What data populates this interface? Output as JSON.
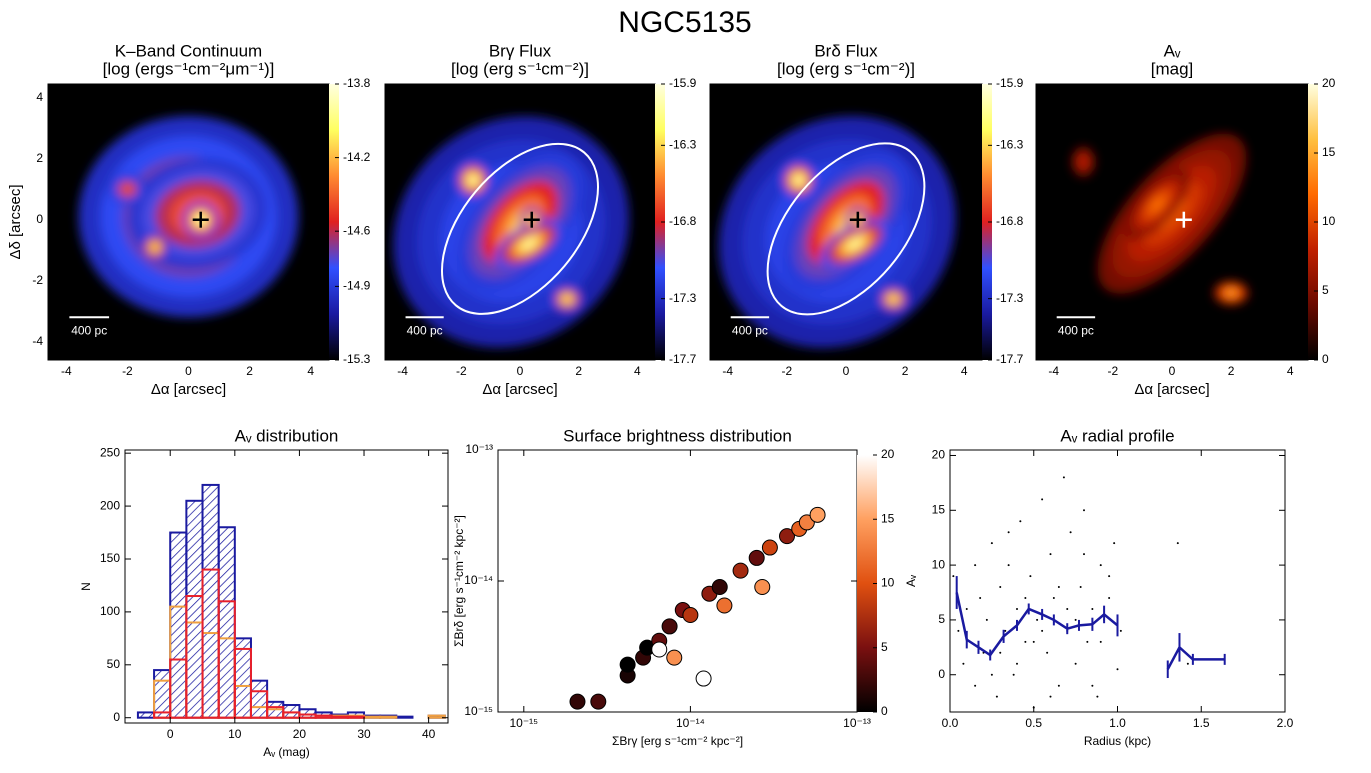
{
  "figure_title": "NGC5135",
  "chart_data": [
    {
      "type": "image",
      "title": "K–Band Continuum",
      "subtitle": "[log (ergs⁻¹cm⁻²μm⁻¹)]",
      "xlabel": "Δα [arcsec]",
      "ylabel": "Δδ [arcsec]",
      "xlim": [
        -4.6,
        4.6
      ],
      "ylim": [
        -4.6,
        4.45
      ],
      "xticks": [
        -4,
        -2,
        0,
        2,
        4
      ],
      "yticks": [
        -4,
        -2,
        0,
        2,
        4
      ],
      "clim": [
        -15.3,
        -13.8
      ],
      "cticks": [
        -13.8,
        -14.2,
        -14.6,
        -14.9,
        -15.3
      ],
      "colormap": [
        "#000000",
        "#1a1aa0",
        "#3050ff",
        "#e02020",
        "#ff8a30",
        "#ffff60",
        "#ffffe0"
      ],
      "scale_bar": "400 pc",
      "marker": {
        "x": 0.4,
        "y": 0,
        "color": "#000000"
      }
    },
    {
      "type": "image",
      "title": "Brγ Flux",
      "subtitle": "[log (erg s⁻¹cm⁻²)]",
      "xlabel": "Δα [arcsec]",
      "xlim": [
        -4.6,
        4.6
      ],
      "ylim": [
        -4.6,
        4.45
      ],
      "xticks": [
        -4,
        -2,
        0,
        2,
        4
      ],
      "clim": [
        -17.7,
        -15.9
      ],
      "cticks": [
        -15.9,
        -16.3,
        -16.8,
        -17.3,
        -17.7
      ],
      "colormap": [
        "#000000",
        "#1a1aa0",
        "#3050ff",
        "#e02020",
        "#ff8a30",
        "#ffff60",
        "#ffffe0"
      ],
      "scale_bar": "400 pc",
      "marker": {
        "x": 0.4,
        "y": 0,
        "color": "#000000"
      },
      "contour": "#ffffff"
    },
    {
      "type": "image",
      "title": "Brδ Flux",
      "subtitle": "[log (erg s⁻¹cm⁻²)]",
      "xlim": [
        -4.6,
        4.6
      ],
      "ylim": [
        -4.6,
        4.45
      ],
      "xticks": [
        -4,
        -2,
        0,
        2,
        4
      ],
      "clim": [
        -17.7,
        -15.9
      ],
      "cticks": [
        -15.9,
        -16.3,
        -16.8,
        -17.3,
        -17.7
      ],
      "colormap": [
        "#000000",
        "#1a1aa0",
        "#3050ff",
        "#e02020",
        "#ff8a30",
        "#ffff60",
        "#ffffe0"
      ],
      "scale_bar": "400 pc",
      "marker": {
        "x": 0.4,
        "y": 0,
        "color": "#000000"
      },
      "contour": "#ffffff"
    },
    {
      "type": "image",
      "title": "Aᵥ",
      "subtitle": "[mag]",
      "xlabel": "Δα [arcsec]",
      "xlim": [
        -4.6,
        4.6
      ],
      "ylim": [
        -4.6,
        4.45
      ],
      "xticks": [
        -4,
        -2,
        0,
        2,
        4
      ],
      "clim": [
        0,
        20
      ],
      "cticks": [
        20,
        15,
        10,
        5,
        0
      ],
      "colormap": [
        "#000000",
        "#6a0a00",
        "#c02000",
        "#ff6a00",
        "#ffc040",
        "#ffffe0"
      ],
      "scale_bar": "400 pc",
      "marker": {
        "x": 0.4,
        "y": 0,
        "color": "#ffffff"
      }
    },
    {
      "type": "histogram",
      "title": "Aᵥ distribution",
      "xlabel": "Aᵥ (mag)",
      "ylabel": "N",
      "xlim": [
        -7,
        43
      ],
      "ylim": [
        -5,
        253
      ],
      "xticks": [
        0,
        10,
        20,
        30,
        40
      ],
      "yticks": [
        0,
        50,
        100,
        150,
        200,
        250
      ],
      "bins": [
        -5,
        -2.5,
        0,
        2.5,
        5,
        7.5,
        10,
        12.5,
        15,
        17.5,
        20,
        22.5,
        25,
        27.5,
        30,
        32.5,
        35,
        37.5,
        40,
        42.5
      ],
      "series": [
        {
          "color": "#1a1aa0",
          "hatch": true,
          "values": [
            5,
            45,
            175,
            205,
            220,
            180,
            75,
            35,
            15,
            12,
            8,
            5,
            3,
            5,
            2,
            2,
            1,
            0,
            2
          ]
        },
        {
          "color": "#f0a040",
          "values": [
            0,
            35,
            105,
            90,
            80,
            75,
            30,
            10,
            8,
            5,
            3,
            2,
            2,
            2,
            1,
            1,
            0,
            0,
            2
          ]
        },
        {
          "color": "#e8202a",
          "values": [
            0,
            5,
            55,
            115,
            140,
            110,
            65,
            25,
            10,
            5,
            3,
            2,
            1,
            1,
            0,
            0,
            0,
            0,
            0
          ]
        }
      ]
    },
    {
      "type": "scatter",
      "title": "Surface brightness distribution",
      "xlabel": "ΣBrγ [erg s⁻¹cm⁻² kpc⁻²]",
      "ylabel": "ΣBrδ [erg s⁻¹cm⁻² kpc⁻²]",
      "log_x": true,
      "log_y": true,
      "xlim": [
        7e-16,
        1e-13
      ],
      "ylim": [
        1e-15,
        1e-13
      ],
      "xticks": [
        {
          "value": 1e-15,
          "label": "10⁻¹⁵"
        },
        {
          "value": 1e-14,
          "label": "10⁻¹⁴"
        },
        {
          "value": 1e-13,
          "label": "10⁻¹³"
        }
      ],
      "yticks": [
        {
          "value": 1e-15,
          "label": "10⁻¹⁵"
        },
        {
          "value": 1e-14,
          "label": "10⁻¹⁴"
        },
        {
          "value": 1e-13,
          "label": "10⁻¹³"
        }
      ],
      "x": [
        2.1e-15,
        2.8e-15,
        4.2e-15,
        4.2e-15,
        5.2e-15,
        5.5e-15,
        6.5e-15,
        6.5e-15,
        7.5e-15,
        8e-15,
        9e-15,
        1e-14,
        1.2e-14,
        1.3e-14,
        1.5e-14,
        1.6e-14,
        2e-14,
        2.5e-14,
        2.7e-14,
        3e-14,
        3.8e-14,
        4.5e-14,
        5e-14,
        5.8e-14
      ],
      "values": [
        1.2e-15,
        1.2e-15,
        1.9e-15,
        2.3e-15,
        2.6e-15,
        3.1e-15,
        3.5e-15,
        3e-15,
        4.5e-15,
        2.6e-15,
        6e-15,
        5.5e-15,
        1.8e-15,
        8e-15,
        9e-15,
        6.5e-15,
        1.2e-14,
        1.5e-14,
        9e-15,
        1.8e-14,
        2.2e-14,
        2.5e-14,
        2.8e-14,
        3.2e-14
      ],
      "color_values": [
        2,
        3,
        1,
        0,
        2,
        0,
        4,
        20,
        3,
        14,
        5,
        8,
        20,
        6,
        2,
        12,
        7,
        4,
        14,
        9,
        6,
        11,
        13,
        15
      ],
      "clim": [
        0,
        20
      ],
      "cticks": [
        0,
        5,
        10,
        15,
        20
      ],
      "colormap": [
        "#000000",
        "#7a1010",
        "#e05010",
        "#ffa060",
        "#ffffff"
      ]
    },
    {
      "type": "profile",
      "title": "Aᵥ radial profile",
      "xlabel": "Radius (kpc)",
      "ylabel": "Aᵥ",
      "xlim": [
        0,
        2
      ],
      "ylim": [
        -3.4,
        20.5
      ],
      "xticks": [
        {
          "value": 0,
          "label": "0.0"
        },
        0.5,
        {
          "value": 1,
          "label": "1.0"
        },
        1.5,
        {
          "value": 2,
          "label": "2.0"
        }
      ],
      "yticks": [
        0,
        5,
        10,
        15,
        20
      ],
      "points": {
        "x": [
          0.02,
          0.05,
          0.08,
          0.1,
          0.12,
          0.15,
          0.18,
          0.2,
          0.22,
          0.25,
          0.28,
          0.3,
          0.33,
          0.35,
          0.38,
          0.4,
          0.42,
          0.45,
          0.48,
          0.5,
          0.52,
          0.55,
          0.58,
          0.6,
          0.62,
          0.65,
          0.68,
          0.7,
          0.72,
          0.75,
          0.78,
          0.8,
          0.82,
          0.85,
          0.88,
          0.9,
          0.92,
          0.95,
          0.98,
          1.0,
          1.02,
          0.3,
          0.45,
          0.6,
          0.75,
          0.9,
          0.15,
          0.4,
          0.55,
          0.7,
          0.85,
          1.36,
          1.37,
          1.42,
          0.65,
          0.5,
          0.25,
          0.8,
          0.95,
          0.35
        ],
        "values": [
          9,
          4,
          1,
          6,
          3,
          -1,
          7,
          2,
          5,
          12,
          -2,
          8,
          4,
          10,
          0,
          6,
          14,
          3,
          9,
          -3,
          5,
          16,
          2,
          11,
          7,
          -1,
          18,
          4,
          13,
          1,
          8,
          15,
          3,
          6,
          -2,
          10,
          5,
          9,
          12,
          0.5,
          4,
          2,
          7,
          -2,
          5,
          3,
          10,
          1,
          4,
          6,
          -1,
          12,
          2.5,
          1,
          8,
          3,
          0,
          11,
          7,
          13
        ],
        "color": "#000000"
      },
      "series": [
        {
          "color": "#1a1aa0",
          "x": [
            0.04,
            0.1,
            0.17,
            0.24,
            0.32,
            0.4,
            0.47,
            0.55,
            0.62,
            0.7,
            0.77,
            0.85,
            0.92,
            1.0,
            null,
            1.3,
            1.37,
            1.45,
            1.64
          ],
          "values": [
            7.5,
            3.2,
            2.5,
            1.8,
            3.5,
            4.5,
            6,
            5.5,
            5,
            4.2,
            4.5,
            4.6,
            5.5,
            4.5,
            null,
            0.5,
            2.5,
            1.4,
            1.4
          ],
          "errors": [
            1.5,
            0.8,
            0.6,
            0.5,
            0.6,
            0.5,
            0.5,
            0.5,
            0.5,
            0.5,
            0.5,
            0.6,
            0.8,
            1.0,
            null,
            0.8,
            1.3,
            0.5,
            0.5
          ]
        }
      ]
    }
  ]
}
